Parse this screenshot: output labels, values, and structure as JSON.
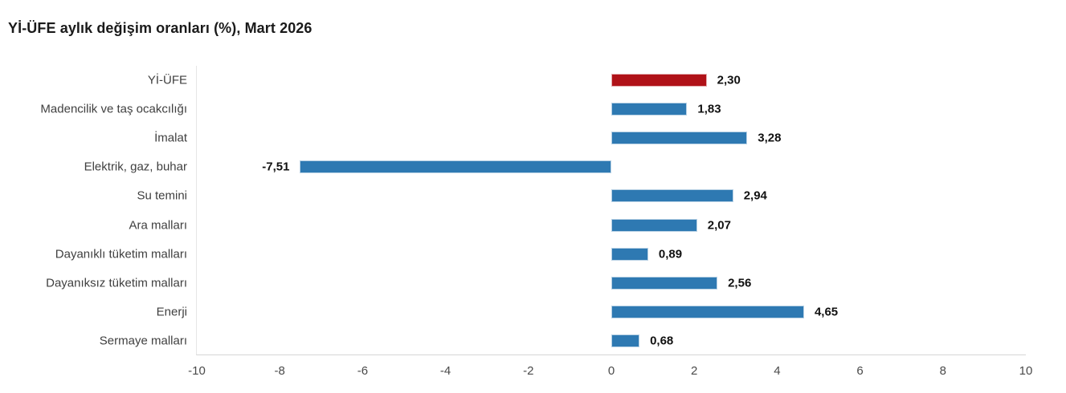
{
  "page": {
    "title": "Yİ-ÜFE aylık değişim oranları (%), Mart 2026"
  },
  "colors": {
    "bar_default": "#2e79b2",
    "bar_highlight": "#b01218",
    "axis_left": "#e6e6e6",
    "axis_bottom": "#d6d6d6",
    "label_text": "#3f3f3f",
    "value_text": "#111111",
    "tick_text": "#4a4a4a",
    "title_text": "#1a1a1a",
    "background": "#ffffff"
  },
  "chart_data": {
    "type": "bar",
    "orientation": "horizontal",
    "title": "Yİ-ÜFE aylık değişim oranları (%), Mart 2026",
    "categories": [
      "Yİ-ÜFE",
      "Madencilik ve taş ocakcılığı",
      "İmalat",
      "Elektrik, gaz, buhar",
      "Su temini",
      "Ara malları",
      "Dayanıklı tüketim malları",
      "Dayanıksız tüketim malları",
      "Enerji",
      "Sermaye malları"
    ],
    "values": [
      2.3,
      1.83,
      3.28,
      -7.51,
      2.94,
      2.07,
      0.89,
      2.56,
      4.65,
      0.68
    ],
    "value_labels": [
      "2,30",
      "1,83",
      "3,28",
      "-7,51",
      "2,94",
      "2,07",
      "0,89",
      "2,56",
      "4,65",
      "0,68"
    ],
    "highlight_index": 0,
    "xlabel": "",
    "ylabel": "",
    "xlim": [
      -10,
      10
    ],
    "x_ticks": [
      -10,
      -8,
      -6,
      -4,
      -2,
      0,
      2,
      4,
      6,
      8,
      10
    ],
    "grid": false,
    "legend": false,
    "decimal_separator": ","
  }
}
